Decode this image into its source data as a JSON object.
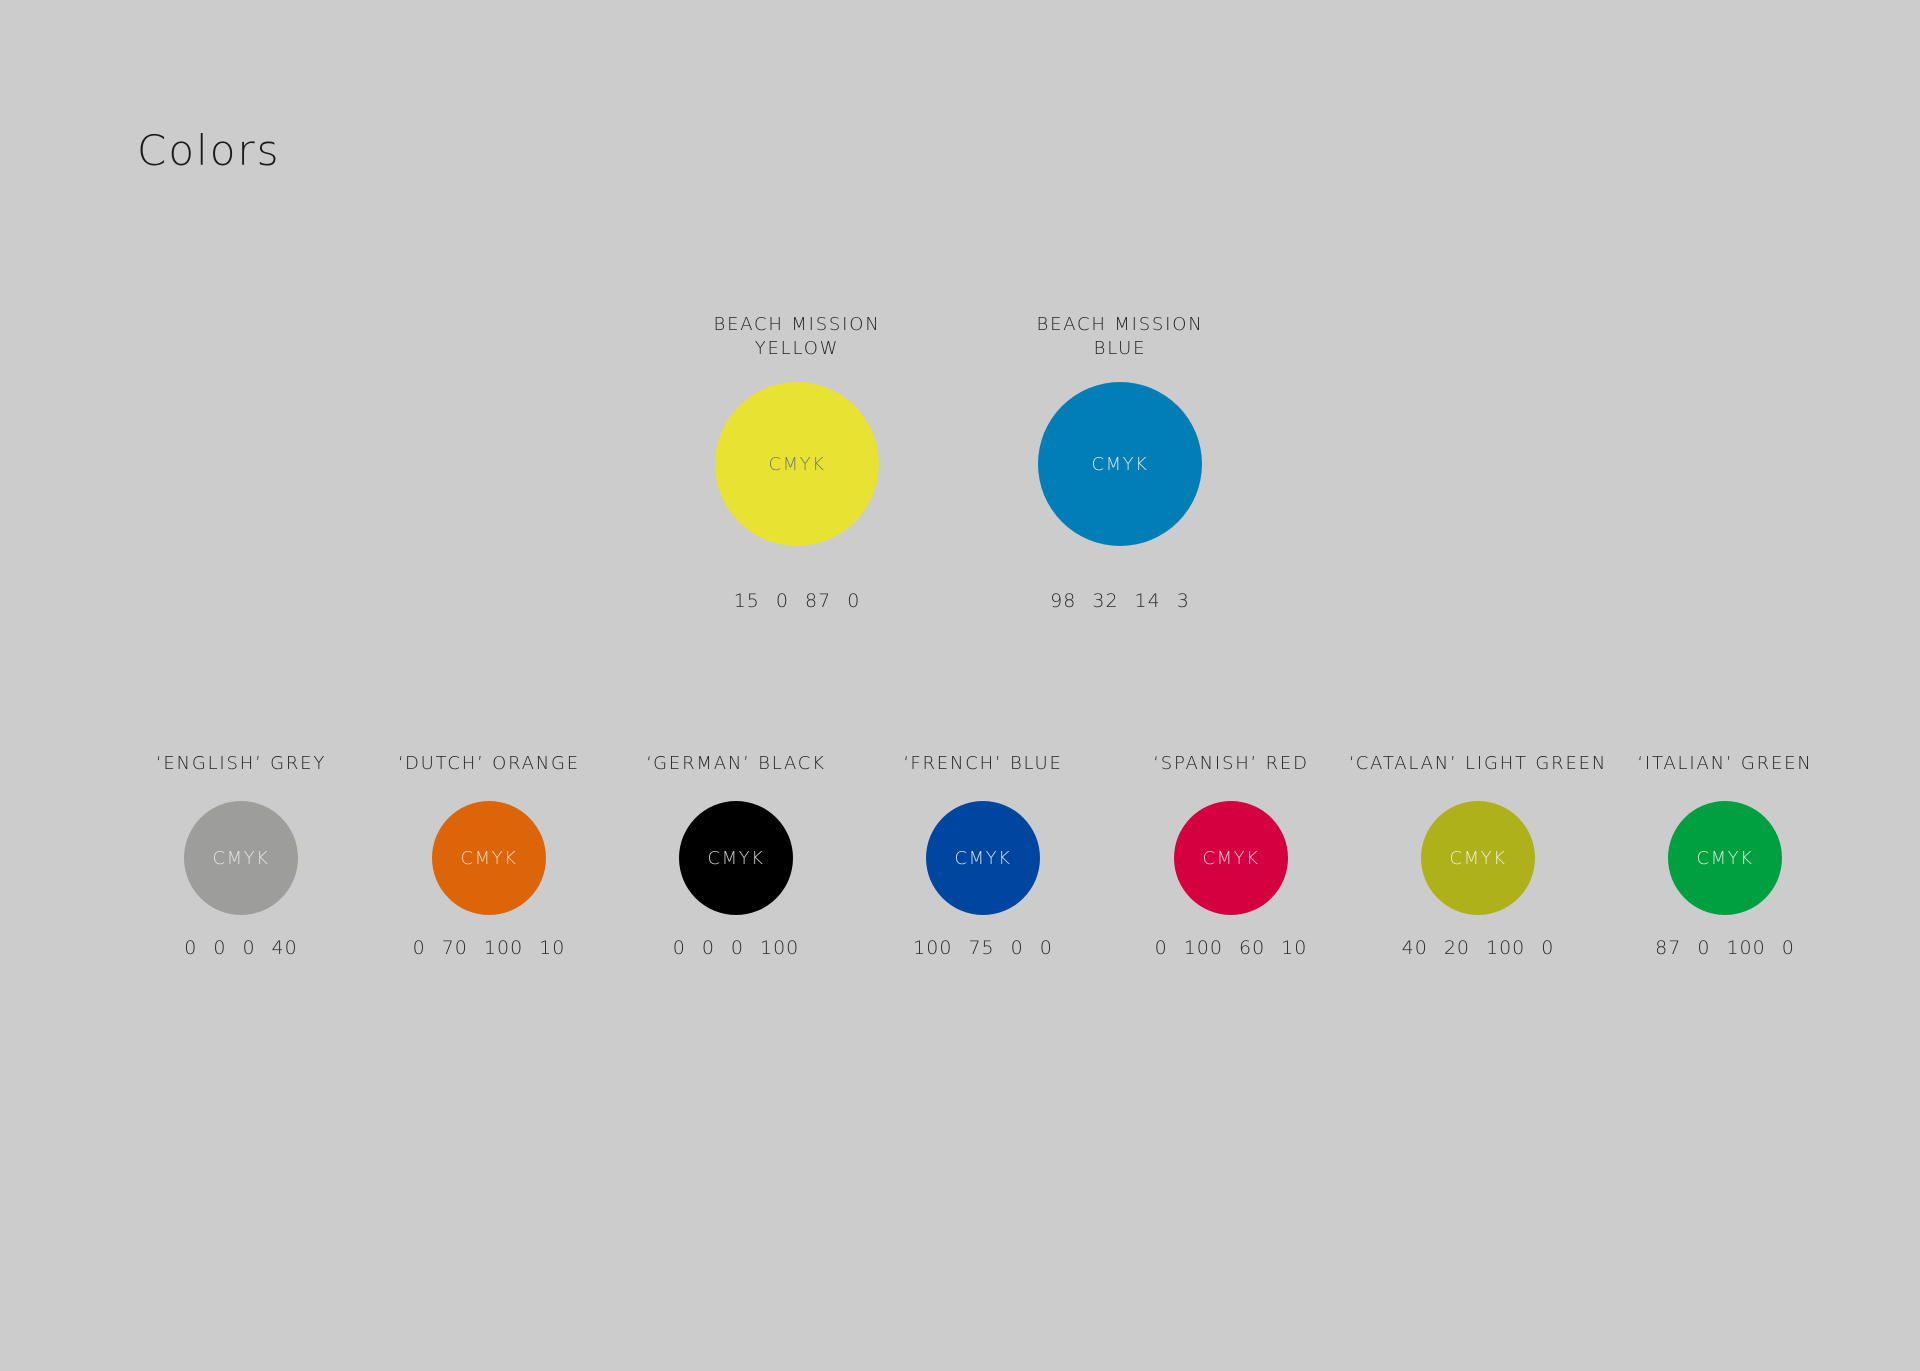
{
  "header": {
    "title": "Colors"
  },
  "primary_colors": [
    {
      "name_lines": [
        "BEACH MISSION",
        "YELLOW"
      ],
      "swatch_label": "CMYK",
      "cmyk": [
        15,
        0,
        87,
        0
      ],
      "color": "#e8e333",
      "label_color": "#7a7a6a"
    },
    {
      "name_lines": [
        "BEACH MISSION",
        "BLUE"
      ],
      "swatch_label": "CMYK",
      "cmyk": [
        98,
        32,
        14,
        3
      ],
      "color": "#007eb5",
      "label_color": "#d8e4ec"
    }
  ],
  "secondary_colors": [
    {
      "name": "‘ENGLISH’ GREY",
      "swatch_label": "CMYK",
      "cmyk": [
        0,
        0,
        0,
        40
      ],
      "color": "#9d9d9b",
      "label_color": "#e2e2e2"
    },
    {
      "name": "‘DUTCH’ ORANGE",
      "swatch_label": "CMYK",
      "cmyk": [
        0,
        70,
        100,
        10
      ],
      "color": "#dc6409",
      "label_color": "#f2d6c0"
    },
    {
      "name": "‘GERMAN’ BLACK",
      "swatch_label": "CMYK",
      "cmyk": [
        0,
        0,
        0,
        100
      ],
      "color": "#000000",
      "label_color": "#cccccc"
    },
    {
      "name": "‘FRENCH’ BLUE",
      "swatch_label": "CMYK",
      "cmyk": [
        100,
        75,
        0,
        0
      ],
      "color": "#0046a0",
      "label_color": "#d4dcea"
    },
    {
      "name": "‘SPANISH’ RED",
      "swatch_label": "CMYK",
      "cmyk": [
        0,
        100,
        60,
        10
      ],
      "color": "#d5003f",
      "label_color": "#f2c8d4"
    },
    {
      "name": "‘CATALAN’ LIGHT GREEN",
      "swatch_label": "CMYK",
      "cmyk": [
        40,
        20,
        100,
        0
      ],
      "color": "#aeb119",
      "label_color": "#eeeed0"
    },
    {
      "name": "‘ITALIAN’ GREEN",
      "swatch_label": "CMYK",
      "cmyk": [
        87,
        0,
        100,
        0
      ],
      "color": "#00a040",
      "label_color": "#d0ecd8"
    }
  ]
}
